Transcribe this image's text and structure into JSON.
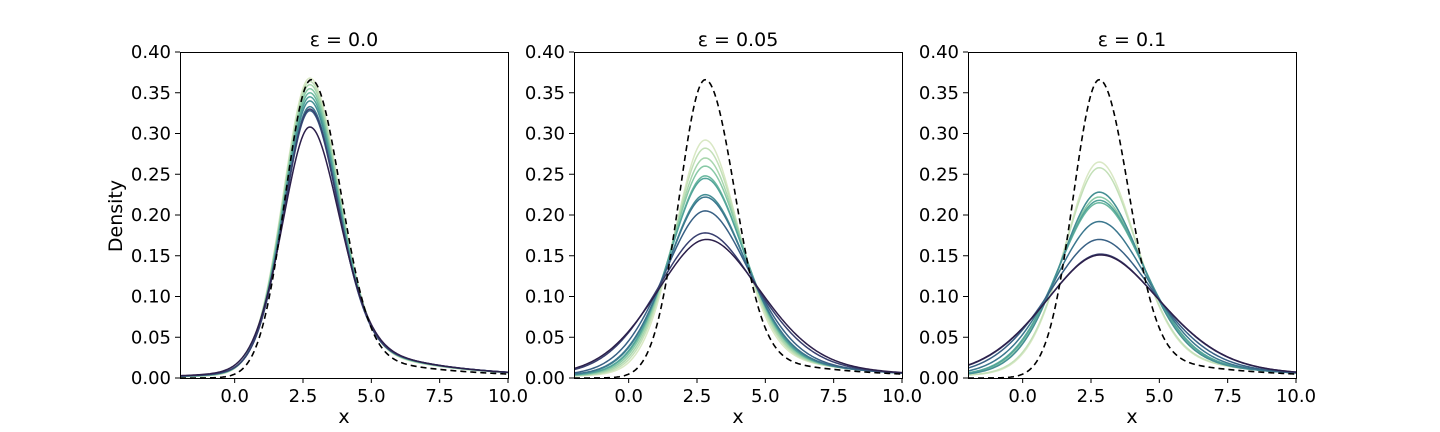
{
  "chart_data": [
    {
      "type": "line",
      "title": "ε = 0.0",
      "xlabel": "x",
      "ylabel": "Density",
      "xlim": [
        -2.0,
        10.0
      ],
      "ylim": [
        0.0,
        0.4
      ],
      "x_ticks": [
        "0.0",
        "2.5",
        "5.0",
        "7.5",
        "10.0"
      ],
      "y_ticks": [
        "0.00",
        "0.05",
        "0.10",
        "0.15",
        "0.20",
        "0.25",
        "0.30",
        "0.35",
        "0.40"
      ],
      "reference": {
        "style": "dashed",
        "color": "#000000",
        "peak": 0.366,
        "mode": 2.8,
        "sigma_left": 0.95,
        "sigma_right": 1.05,
        "tail_weight": 0.0
      },
      "series": [
        {
          "peak": 0.368,
          "mode": 2.75,
          "sigma_left": 1.0,
          "sigma_right": 1.05,
          "tail_weight": 0.1,
          "color": "#d9e8c4"
        },
        {
          "peak": 0.364,
          "mode": 2.75,
          "sigma_left": 1.0,
          "sigma_right": 1.05,
          "tail_weight": 0.11,
          "color": "#c3e0b8"
        },
        {
          "peak": 0.36,
          "mode": 2.75,
          "sigma_left": 1.0,
          "sigma_right": 1.05,
          "tail_weight": 0.12,
          "color": "#a8d6ad"
        },
        {
          "peak": 0.355,
          "mode": 2.75,
          "sigma_left": 1.0,
          "sigma_right": 1.05,
          "tail_weight": 0.13,
          "color": "#88c9a6"
        },
        {
          "peak": 0.35,
          "mode": 2.75,
          "sigma_left": 1.0,
          "sigma_right": 1.05,
          "tail_weight": 0.14,
          "color": "#6ab89f"
        },
        {
          "peak": 0.345,
          "mode": 2.75,
          "sigma_left": 1.0,
          "sigma_right": 1.05,
          "tail_weight": 0.15,
          "color": "#52a49a"
        },
        {
          "peak": 0.34,
          "mode": 2.75,
          "sigma_left": 1.0,
          "sigma_right": 1.05,
          "tail_weight": 0.16,
          "color": "#448e95"
        },
        {
          "peak": 0.333,
          "mode": 2.75,
          "sigma_left": 1.0,
          "sigma_right": 1.05,
          "tail_weight": 0.17,
          "color": "#3b778e"
        },
        {
          "peak": 0.328,
          "mode": 2.75,
          "sigma_left": 1.0,
          "sigma_right": 1.05,
          "tail_weight": 0.18,
          "color": "#386084"
        },
        {
          "peak": 0.33,
          "mode": 2.75,
          "sigma_left": 1.0,
          "sigma_right": 1.05,
          "tail_weight": 0.18,
          "color": "#383f6f"
        },
        {
          "peak": 0.308,
          "mode": 2.75,
          "sigma_left": 1.05,
          "sigma_right": 1.1,
          "tail_weight": 0.2,
          "color": "#2c1f4a"
        }
      ]
    },
    {
      "type": "line",
      "title": "ε = 0.05",
      "xlabel": "x",
      "ylabel": "",
      "xlim": [
        -2.0,
        10.0
      ],
      "ylim": [
        0.0,
        0.4
      ],
      "x_ticks": [
        "0.0",
        "2.5",
        "5.0",
        "7.5",
        "10.0"
      ],
      "y_ticks": [
        "0.00",
        "0.05",
        "0.10",
        "0.15",
        "0.20",
        "0.25",
        "0.30",
        "0.35",
        "0.40"
      ],
      "reference": {
        "style": "dashed",
        "color": "#000000",
        "peak": 0.366,
        "mode": 2.8,
        "sigma_left": 0.95,
        "sigma_right": 1.05,
        "tail_weight": 0.0
      },
      "series": [
        {
          "peak": 0.292,
          "mode": 2.8,
          "sigma_left": 1.15,
          "sigma_right": 1.2,
          "tail_weight": 0.15,
          "color": "#d9e8c4"
        },
        {
          "peak": 0.282,
          "mode": 2.8,
          "sigma_left": 1.2,
          "sigma_right": 1.25,
          "tail_weight": 0.16,
          "color": "#c3e0b8"
        },
        {
          "peak": 0.27,
          "mode": 2.8,
          "sigma_left": 1.25,
          "sigma_right": 1.3,
          "tail_weight": 0.17,
          "color": "#a8d6ad"
        },
        {
          "peak": 0.26,
          "mode": 2.8,
          "sigma_left": 1.3,
          "sigma_right": 1.35,
          "tail_weight": 0.18,
          "color": "#88c9a6"
        },
        {
          "peak": 0.248,
          "mode": 2.8,
          "sigma_left": 1.35,
          "sigma_right": 1.4,
          "tail_weight": 0.19,
          "color": "#6ab89f"
        },
        {
          "peak": 0.245,
          "mode": 2.8,
          "sigma_left": 1.37,
          "sigma_right": 1.42,
          "tail_weight": 0.19,
          "color": "#52a49a"
        },
        {
          "peak": 0.225,
          "mode": 2.8,
          "sigma_left": 1.45,
          "sigma_right": 1.5,
          "tail_weight": 0.2,
          "color": "#448e95"
        },
        {
          "peak": 0.222,
          "mode": 2.8,
          "sigma_left": 1.47,
          "sigma_right": 1.52,
          "tail_weight": 0.21,
          "color": "#3b778e"
        },
        {
          "peak": 0.205,
          "mode": 2.8,
          "sigma_left": 1.6,
          "sigma_right": 1.65,
          "tail_weight": 0.22,
          "color": "#386084"
        },
        {
          "peak": 0.178,
          "mode": 2.8,
          "sigma_left": 1.85,
          "sigma_right": 1.9,
          "tail_weight": 0.24,
          "color": "#383f6f"
        },
        {
          "peak": 0.17,
          "mode": 2.85,
          "sigma_left": 1.95,
          "sigma_right": 2.0,
          "tail_weight": 0.25,
          "color": "#2c1f4a"
        }
      ]
    },
    {
      "type": "line",
      "title": "ε = 0.1",
      "xlabel": "x",
      "ylabel": "",
      "xlim": [
        -2.0,
        10.0
      ],
      "ylim": [
        0.0,
        0.4
      ],
      "x_ticks": [
        "0.0",
        "2.5",
        "5.0",
        "7.5",
        "10.0"
      ],
      "y_ticks": [
        "0.00",
        "0.05",
        "0.10",
        "0.15",
        "0.20",
        "0.25",
        "0.30",
        "0.35",
        "0.40"
      ],
      "reference": {
        "style": "dashed",
        "color": "#000000",
        "peak": 0.366,
        "mode": 2.8,
        "sigma_left": 0.95,
        "sigma_right": 1.05,
        "tail_weight": 0.0
      },
      "series": [
        {
          "peak": 0.265,
          "mode": 2.8,
          "sigma_left": 1.3,
          "sigma_right": 1.35,
          "tail_weight": 0.18,
          "color": "#d9e8c4"
        },
        {
          "peak": 0.258,
          "mode": 2.8,
          "sigma_left": 1.33,
          "sigma_right": 1.38,
          "tail_weight": 0.19,
          "color": "#c3e0b8"
        },
        {
          "peak": 0.228,
          "mode": 2.8,
          "sigma_left": 1.5,
          "sigma_right": 1.55,
          "tail_weight": 0.2,
          "color": "#a8d6ad"
        },
        {
          "peak": 0.222,
          "mode": 2.8,
          "sigma_left": 1.55,
          "sigma_right": 1.6,
          "tail_weight": 0.21,
          "color": "#88c9a6"
        },
        {
          "peak": 0.215,
          "mode": 2.8,
          "sigma_left": 1.6,
          "sigma_right": 1.65,
          "tail_weight": 0.21,
          "color": "#6ab89f"
        },
        {
          "peak": 0.218,
          "mode": 2.8,
          "sigma_left": 1.58,
          "sigma_right": 1.63,
          "tail_weight": 0.21,
          "color": "#52a49a"
        },
        {
          "peak": 0.228,
          "mode": 2.8,
          "sigma_left": 1.5,
          "sigma_right": 1.55,
          "tail_weight": 0.2,
          "color": "#448e95"
        },
        {
          "peak": 0.192,
          "mode": 2.8,
          "sigma_left": 1.75,
          "sigma_right": 1.8,
          "tail_weight": 0.23,
          "color": "#3b778e"
        },
        {
          "peak": 0.17,
          "mode": 2.8,
          "sigma_left": 1.95,
          "sigma_right": 2.0,
          "tail_weight": 0.25,
          "color": "#386084"
        },
        {
          "peak": 0.152,
          "mode": 2.85,
          "sigma_left": 2.15,
          "sigma_right": 2.2,
          "tail_weight": 0.27,
          "color": "#383f6f"
        },
        {
          "peak": 0.151,
          "mode": 2.85,
          "sigma_left": 2.17,
          "sigma_right": 2.22,
          "tail_weight": 0.27,
          "color": "#2c1f4a"
        }
      ]
    }
  ]
}
